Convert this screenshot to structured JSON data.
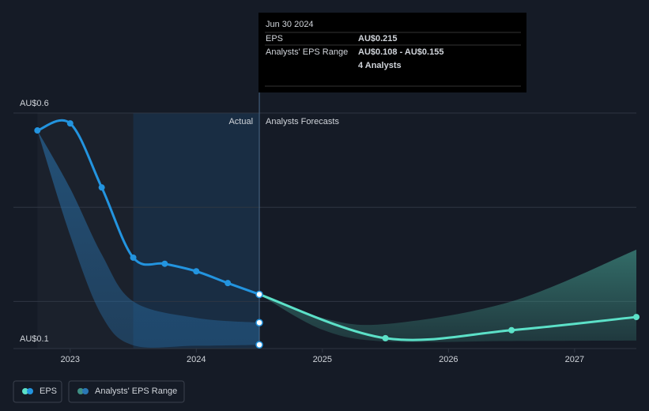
{
  "chart_data": {
    "type": "line",
    "xlim": [
      2022.55,
      2027.49
    ],
    "xticks": [
      2023,
      2024,
      2025,
      2026,
      2027
    ],
    "ylim": [
      0.1,
      0.6
    ],
    "yticks": [
      {
        "value": 0.6,
        "label": "AU$0.6"
      },
      {
        "value": 0.1,
        "label": "AU$0.1"
      }
    ],
    "gridlines": [
      0.6,
      0.4,
      0.2
    ],
    "annotations": {
      "actual": "Actual",
      "forecast": "Analysts Forecasts"
    },
    "series": [
      {
        "name": "EPS",
        "color": "#2394df",
        "x": [
          2022.74,
          2023.0,
          2023.25,
          2023.5,
          2023.75,
          2024.0,
          2024.25,
          2024.5
        ],
        "values": [
          0.563,
          0.578,
          0.442,
          0.293,
          0.28,
          0.264,
          0.239,
          0.215
        ],
        "forecast": {
          "color": "#5ce1c8",
          "x": [
            2024.5,
            2025.5,
            2026.5,
            2027.49
          ],
          "values": [
            0.215,
            0.122,
            0.139,
            0.167
          ]
        }
      }
    ],
    "range": {
      "name": "Analysts' EPS Range",
      "color": "#2a77b4",
      "forecast_color": "#3f8f84",
      "x": [
        2022.74,
        2023.0,
        2023.25,
        2023.5,
        2024.0,
        2024.5
      ],
      "high": [
        0.563,
        0.44,
        0.3,
        0.2,
        0.165,
        0.155
      ],
      "low": [
        0.563,
        0.34,
        0.17,
        0.107,
        0.106,
        0.108
      ],
      "forecast": {
        "x": [
          2024.5,
          2025.0,
          2025.5,
          2026.5,
          2027.49
        ],
        "high": [
          0.215,
          0.165,
          0.152,
          0.2,
          0.31
        ],
        "low": [
          0.215,
          0.14,
          0.115,
          0.116,
          0.117
        ]
      }
    }
  },
  "tooltip": {
    "date": "Jun 30 2024",
    "rows": [
      {
        "label": "EPS",
        "value": "AU$0.215"
      },
      {
        "label": "Analysts' EPS Range",
        "value": "AU$0.108 - AU$0.155"
      }
    ],
    "note": "4 Analysts"
  }
}
